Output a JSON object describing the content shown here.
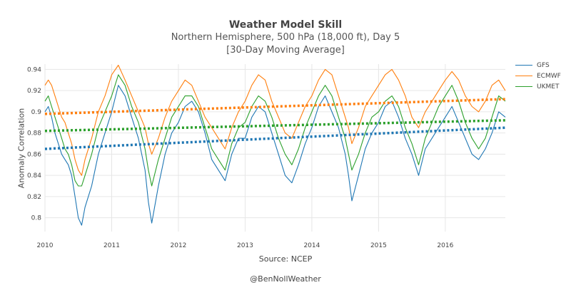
{
  "chart_data": {
    "type": "line",
    "title": "Weather Model Skill",
    "subtitle": "Northern Hemisphere, 500 hPa (18,000 ft), Day 5",
    "subtitle2": "[30-Day Moving Average]",
    "xlabel": "Source: NCEP",
    "ylabel": "Anomaly Correlation",
    "credit": "@BenNollWeather",
    "xlim": [
      2010.0,
      2016.9
    ],
    "ylim": [
      0.787,
      0.945
    ],
    "x_ticks": [
      "2010",
      "2011",
      "2012",
      "2013",
      "2014",
      "2015",
      "2016"
    ],
    "y_ticks": [
      "0.8",
      "0.82",
      "0.84",
      "0.86",
      "0.88",
      "0.9",
      "0.92",
      "0.94"
    ],
    "grid": true,
    "legend_position": "right",
    "series": [
      {
        "name": "GFS",
        "color": "#1f77b4",
        "x": [
          2010.0,
          2010.05,
          2010.1,
          2010.15,
          2010.2,
          2010.25,
          2010.3,
          2010.35,
          2010.4,
          2010.45,
          2010.5,
          2010.55,
          2010.6,
          2010.7,
          2010.8,
          2010.9,
          2011.0,
          2011.1,
          2011.2,
          2011.3,
          2011.4,
          2011.5,
          2011.55,
          2011.6,
          2011.7,
          2011.8,
          2011.9,
          2012.0,
          2012.1,
          2012.2,
          2012.3,
          2012.4,
          2012.5,
          2012.6,
          2012.7,
          2012.8,
          2012.9,
          2013.0,
          2013.1,
          2013.2,
          2013.3,
          2013.4,
          2013.5,
          2013.6,
          2013.7,
          2013.8,
          2013.9,
          2014.0,
          2014.1,
          2014.2,
          2014.3,
          2014.4,
          2014.5,
          2014.55,
          2014.6,
          2014.7,
          2014.8,
          2014.9,
          2015.0,
          2015.1,
          2015.2,
          2015.3,
          2015.4,
          2015.5,
          2015.6,
          2015.7,
          2015.8,
          2015.9,
          2016.0,
          2016.1,
          2016.2,
          2016.3,
          2016.4,
          2016.5,
          2016.6,
          2016.7,
          2016.8,
          2016.9
        ],
        "y": [
          0.9,
          0.905,
          0.895,
          0.88,
          0.87,
          0.86,
          0.855,
          0.85,
          0.84,
          0.82,
          0.8,
          0.793,
          0.81,
          0.83,
          0.86,
          0.88,
          0.9,
          0.925,
          0.915,
          0.895,
          0.875,
          0.845,
          0.815,
          0.795,
          0.83,
          0.86,
          0.88,
          0.89,
          0.905,
          0.91,
          0.9,
          0.88,
          0.855,
          0.845,
          0.835,
          0.86,
          0.875,
          0.875,
          0.895,
          0.905,
          0.9,
          0.88,
          0.86,
          0.84,
          0.833,
          0.85,
          0.87,
          0.885,
          0.905,
          0.915,
          0.9,
          0.885,
          0.86,
          0.84,
          0.816,
          0.84,
          0.865,
          0.88,
          0.89,
          0.905,
          0.91,
          0.895,
          0.875,
          0.86,
          0.84,
          0.865,
          0.875,
          0.885,
          0.895,
          0.905,
          0.89,
          0.875,
          0.86,
          0.855,
          0.865,
          0.88,
          0.9,
          0.895
        ]
      },
      {
        "name": "ECMWF",
        "color": "#ff7f0e",
        "x": [
          2010.0,
          2010.05,
          2010.1,
          2010.15,
          2010.2,
          2010.25,
          2010.3,
          2010.35,
          2010.4,
          2010.45,
          2010.5,
          2010.55,
          2010.6,
          2010.7,
          2010.8,
          2010.9,
          2011.0,
          2011.1,
          2011.2,
          2011.3,
          2011.4,
          2011.5,
          2011.55,
          2011.6,
          2011.7,
          2011.8,
          2011.9,
          2012.0,
          2012.1,
          2012.2,
          2012.3,
          2012.4,
          2012.5,
          2012.6,
          2012.7,
          2012.8,
          2012.9,
          2013.0,
          2013.1,
          2013.2,
          2013.3,
          2013.4,
          2013.5,
          2013.6,
          2013.7,
          2013.8,
          2013.9,
          2014.0,
          2014.1,
          2014.2,
          2014.3,
          2014.4,
          2014.5,
          2014.55,
          2014.6,
          2014.7,
          2014.8,
          2014.9,
          2015.0,
          2015.1,
          2015.2,
          2015.3,
          2015.4,
          2015.5,
          2015.6,
          2015.7,
          2015.8,
          2015.9,
          2016.0,
          2016.1,
          2016.2,
          2016.3,
          2016.4,
          2016.5,
          2016.6,
          2016.7,
          2016.8,
          2016.9
        ],
        "y": [
          0.925,
          0.93,
          0.925,
          0.915,
          0.905,
          0.895,
          0.89,
          0.88,
          0.87,
          0.855,
          0.845,
          0.84,
          0.855,
          0.875,
          0.9,
          0.915,
          0.935,
          0.944,
          0.93,
          0.915,
          0.9,
          0.885,
          0.87,
          0.86,
          0.875,
          0.895,
          0.91,
          0.92,
          0.93,
          0.925,
          0.91,
          0.895,
          0.885,
          0.875,
          0.865,
          0.885,
          0.9,
          0.91,
          0.925,
          0.935,
          0.93,
          0.91,
          0.895,
          0.88,
          0.875,
          0.89,
          0.905,
          0.915,
          0.93,
          0.94,
          0.935,
          0.915,
          0.895,
          0.885,
          0.87,
          0.885,
          0.905,
          0.915,
          0.925,
          0.935,
          0.94,
          0.93,
          0.915,
          0.895,
          0.885,
          0.9,
          0.91,
          0.92,
          0.93,
          0.938,
          0.93,
          0.915,
          0.905,
          0.9,
          0.91,
          0.925,
          0.93,
          0.92
        ]
      },
      {
        "name": "UKMET",
        "color": "#2ca02c",
        "x": [
          2010.0,
          2010.05,
          2010.1,
          2010.15,
          2010.2,
          2010.25,
          2010.3,
          2010.35,
          2010.4,
          2010.45,
          2010.5,
          2010.55,
          2010.6,
          2010.7,
          2010.8,
          2010.9,
          2011.0,
          2011.1,
          2011.2,
          2011.3,
          2011.4,
          2011.5,
          2011.55,
          2011.6,
          2011.7,
          2011.8,
          2011.9,
          2012.0,
          2012.1,
          2012.2,
          2012.3,
          2012.4,
          2012.5,
          2012.6,
          2012.7,
          2012.8,
          2012.9,
          2013.0,
          2013.1,
          2013.2,
          2013.3,
          2013.4,
          2013.5,
          2013.6,
          2013.7,
          2013.8,
          2013.9,
          2014.0,
          2014.1,
          2014.2,
          2014.3,
          2014.4,
          2014.5,
          2014.55,
          2014.6,
          2014.7,
          2014.8,
          2014.9,
          2015.0,
          2015.1,
          2015.2,
          2015.3,
          2015.4,
          2015.5,
          2015.6,
          2015.7,
          2015.8,
          2015.9,
          2016.0,
          2016.1,
          2016.2,
          2016.3,
          2016.4,
          2016.5,
          2016.6,
          2016.7,
          2016.8,
          2016.9
        ],
        "y": [
          0.91,
          0.915,
          0.905,
          0.895,
          0.885,
          0.875,
          0.865,
          0.86,
          0.85,
          0.835,
          0.83,
          0.83,
          0.84,
          0.86,
          0.885,
          0.9,
          0.915,
          0.935,
          0.925,
          0.905,
          0.89,
          0.865,
          0.845,
          0.83,
          0.855,
          0.875,
          0.895,
          0.905,
          0.915,
          0.915,
          0.905,
          0.885,
          0.865,
          0.855,
          0.845,
          0.87,
          0.885,
          0.89,
          0.905,
          0.915,
          0.91,
          0.895,
          0.875,
          0.86,
          0.85,
          0.865,
          0.885,
          0.9,
          0.915,
          0.925,
          0.915,
          0.895,
          0.875,
          0.86,
          0.845,
          0.86,
          0.88,
          0.895,
          0.9,
          0.91,
          0.915,
          0.905,
          0.885,
          0.87,
          0.85,
          0.875,
          0.89,
          0.905,
          0.915,
          0.925,
          0.91,
          0.89,
          0.875,
          0.865,
          0.875,
          0.895,
          0.915,
          0.91
        ]
      }
    ],
    "trendlines": [
      {
        "series": "GFS",
        "color": "#1f77b4",
        "x": [
          2010.0,
          2016.9
        ],
        "y": [
          0.865,
          0.885
        ]
      },
      {
        "series": "ECMWF",
        "color": "#ff7f0e",
        "x": [
          2010.0,
          2016.9
        ],
        "y": [
          0.898,
          0.912
        ]
      },
      {
        "series": "UKMET",
        "color": "#2ca02c",
        "x": [
          2010.0,
          2016.9
        ],
        "y": [
          0.882,
          0.892
        ]
      }
    ]
  }
}
